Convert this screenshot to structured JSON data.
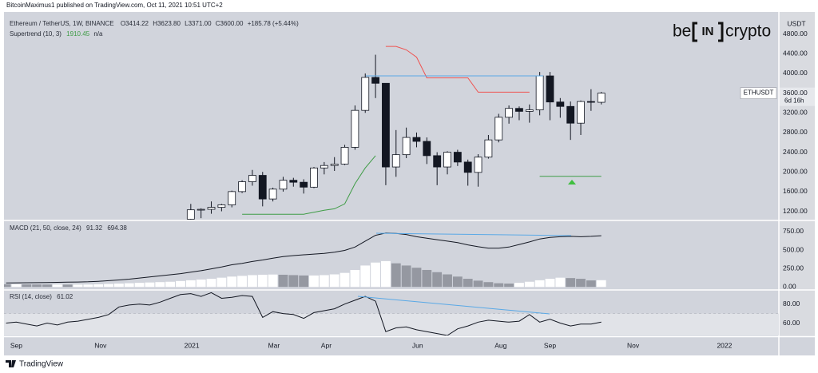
{
  "header": {
    "publisher": "BitcoinMaximus1 published on TradingView.com, Oct 11, 2021 10:51 UTC+2"
  },
  "logo": {
    "left": "be",
    "middle": "IN",
    "right": "crypto"
  },
  "footer": {
    "brand": "TradingView"
  },
  "chart_data": [
    {
      "type": "candlestick",
      "title": "Ethereum / TetherUS, 1W, BINANCE",
      "ohlc_legend": [
        {
          "key": "O",
          "value": "3414.22"
        },
        {
          "key": "H",
          "value": "3623.80"
        },
        {
          "key": "L",
          "value": "3371.00"
        },
        {
          "key": "C",
          "value": "3600.00"
        }
      ],
      "change": "+185.78 (+5.44%)",
      "symbol": "ETHUSDT",
      "last_price": "3600.00",
      "countdown": "6d 16h",
      "unit": "USDT",
      "x": [
        17,
        18,
        19,
        20,
        21,
        22,
        23,
        24,
        25,
        26,
        27,
        28,
        29,
        30,
        31,
        32,
        33,
        34,
        35,
        36,
        37,
        38,
        39,
        40,
        41,
        42,
        43,
        44,
        45,
        46,
        47,
        48,
        49,
        50,
        51,
        52,
        53,
        54,
        55,
        56,
        57
      ],
      "open": [
        1040,
        1230,
        1240,
        1280,
        1330,
        1600,
        1800,
        1930,
        1450,
        1650,
        1830,
        1790,
        1690,
        2080,
        2130,
        2160,
        2500,
        3250,
        3920,
        3800,
        2100,
        2350,
        2700,
        2620,
        2330,
        2100,
        2400,
        2200,
        1990,
        2300,
        2650,
        3110,
        3290,
        3230,
        3260,
        3950,
        3420,
        3330,
        2990,
        3430,
        3414.22
      ],
      "high": [
        1350,
        1260,
        1400,
        1350,
        1620,
        1830,
        2040,
        2000,
        1680,
        1900,
        1880,
        1850,
        2100,
        2200,
        2300,
        2550,
        3350,
        4000,
        4380,
        3800,
        2850,
        2900,
        2800,
        2700,
        2400,
        2420,
        2450,
        2250,
        2360,
        2750,
        3180,
        3350,
        3330,
        3370,
        4030,
        4030,
        3500,
        3430,
        3450,
        3680,
        3623.8
      ],
      "low": [
        1000,
        1060,
        1150,
        1200,
        1280,
        1570,
        1720,
        1300,
        1400,
        1600,
        1700,
        1560,
        1670,
        1950,
        2020,
        2140,
        2450,
        3200,
        3500,
        1730,
        1900,
        2280,
        2500,
        2160,
        1730,
        1950,
        2120,
        1720,
        1700,
        2270,
        2600,
        2980,
        3050,
        3000,
        3150,
        3050,
        3100,
        2650,
        2750,
        3240,
        3371
      ],
      "close": [
        1230,
        1240,
        1280,
        1330,
        1600,
        1800,
        1930,
        1450,
        1650,
        1830,
        1790,
        1690,
        2080,
        2130,
        2160,
        2500,
        3250,
        3920,
        3800,
        2100,
        2350,
        2700,
        2620,
        2330,
        2100,
        2400,
        2200,
        1990,
        2300,
        2650,
        3110,
        3290,
        3230,
        3260,
        3950,
        3420,
        3330,
        2990,
        3430,
        3414.22,
        3600
      ],
      "up_color": "#ffffff",
      "down_color": "#131722",
      "supertrend": {
        "title": "Supertrend (10, 3)",
        "value": "1910.45",
        "second": "n/a",
        "up": [
          null,
          null,
          null,
          null,
          null,
          1140,
          1140,
          1140,
          1140,
          1140,
          1140,
          1140,
          1180,
          1220,
          1250,
          1350,
          1760,
          2080,
          2330,
          null,
          null,
          null,
          null,
          null,
          null,
          null,
          null,
          null,
          null,
          null,
          null,
          null,
          null,
          null,
          1910,
          1910,
          1910,
          1910,
          1910,
          1910,
          1910.45
        ],
        "down": [
          null,
          null,
          null,
          null,
          null,
          null,
          null,
          null,
          null,
          null,
          null,
          null,
          null,
          null,
          null,
          null,
          null,
          null,
          null,
          4550,
          4550,
          4480,
          4330,
          3910,
          3910,
          3910,
          3910,
          3910,
          3620,
          3620,
          3620,
          3620,
          3620,
          3620,
          null,
          null,
          null,
          null,
          null,
          null,
          null
        ],
        "up_color": "#3f9c46",
        "down_color": "#ef5350"
      },
      "xlim": [
        -1.2,
        74.3
      ],
      "ylim": [
        1030,
        5200
      ],
      "yticks": [
        {
          "value": 1200,
          "label": "1200.00"
        },
        {
          "value": 1600,
          "label": "1600.00"
        },
        {
          "value": 2000,
          "label": "2000.00"
        },
        {
          "value": 2400,
          "label": "2400.00"
        },
        {
          "value": 2800,
          "label": "2800.00"
        },
        {
          "value": 3200,
          "label": "3200.00"
        },
        {
          "value": 3600,
          "label": "3600.00"
        },
        {
          "value": 4000,
          "label": "4000.00"
        },
        {
          "value": 4400,
          "label": "4400.00"
        },
        {
          "value": 4800,
          "label": "4800.00"
        }
      ]
    },
    {
      "type": "macd",
      "title": "MACD (21, 50, close, 24)",
      "legend_values": [
        "91.32",
        "694.38"
      ],
      "x": [
        -1,
        0,
        1,
        2,
        3,
        4,
        5,
        6,
        7,
        8,
        9,
        10,
        11,
        12,
        13,
        14,
        15,
        16,
        17,
        18,
        19,
        20,
        21,
        22,
        23,
        24,
        25,
        26,
        27,
        28,
        29,
        30,
        31,
        32,
        33,
        34,
        35,
        36,
        37,
        38,
        39,
        40,
        41,
        42,
        43,
        44,
        45,
        46,
        47,
        48,
        49,
        50,
        51,
        52,
        53,
        54,
        55,
        56,
        57
      ],
      "macd": [
        54,
        55,
        57,
        58,
        60,
        62,
        64,
        66,
        70,
        76,
        85,
        95,
        105,
        120,
        135,
        150,
        165,
        180,
        200,
        220,
        245,
        270,
        300,
        320,
        345,
        365,
        390,
        410,
        425,
        435,
        445,
        455,
        470,
        495,
        540,
        620,
        700,
        730,
        725,
        710,
        680,
        660,
        640,
        620,
        600,
        570,
        545,
        525,
        525,
        540,
        575,
        610,
        650,
        670,
        680,
        685,
        680,
        685,
        694.38
      ],
      "histogram": [
        35,
        35,
        34,
        33,
        32,
        32,
        31,
        31,
        32,
        35,
        40,
        45,
        50,
        55,
        60,
        65,
        70,
        80,
        90,
        100,
        110,
        125,
        140,
        150,
        160,
        165,
        168,
        165,
        160,
        155,
        155,
        160,
        170,
        190,
        230,
        290,
        330,
        350,
        320,
        290,
        260,
        230,
        200,
        170,
        140,
        110,
        85,
        65,
        50,
        45,
        55,
        70,
        90,
        110,
        125,
        120,
        110,
        88,
        91.32
      ],
      "line_color": "#131722",
      "rising_color": "#ffffff",
      "falling_color": "#9598a1",
      "xlim": [
        -1.2,
        74.3
      ],
      "ylim": [
        -30,
        890
      ],
      "yticks": [
        {
          "value": 0,
          "label": "0.00"
        },
        {
          "value": 250,
          "label": "250.00"
        },
        {
          "value": 500,
          "label": "500.00"
        },
        {
          "value": 750,
          "label": "750.00"
        }
      ]
    },
    {
      "type": "line",
      "title": "RSI (14, close)",
      "legend_value": "61.02",
      "x": [
        -1,
        0,
        1,
        2,
        3,
        4,
        5,
        6,
        7,
        8,
        9,
        10,
        11,
        12,
        13,
        14,
        15,
        16,
        17,
        18,
        19,
        20,
        21,
        22,
        23,
        24,
        25,
        26,
        27,
        28,
        29,
        30,
        31,
        32,
        33,
        34,
        35,
        36,
        37,
        38,
        39,
        40,
        41,
        42,
        43,
        44,
        45,
        46,
        47,
        48,
        49,
        50,
        51,
        52,
        53,
        54,
        55,
        56,
        57
      ],
      "values": [
        60,
        61,
        59,
        57,
        60,
        58,
        61,
        62,
        64,
        66,
        69,
        77,
        79,
        80,
        79,
        82,
        86,
        90,
        91,
        88,
        92,
        86,
        87,
        89,
        88,
        66,
        72,
        70,
        69,
        65,
        71,
        73,
        75,
        80,
        84,
        88,
        83,
        51,
        55,
        56,
        53,
        51,
        49,
        47,
        54,
        57,
        61,
        63,
        62,
        61,
        62,
        69,
        61,
        64,
        60,
        57,
        59,
        59,
        61.02
      ],
      "color": "#131722",
      "band": [
        30,
        70
      ],
      "band_color": "#e1e3e8",
      "xlim": [
        -1.2,
        74.3
      ],
      "ylim": [
        47,
        94
      ],
      "yticks": [
        {
          "value": 60,
          "label": "60.00"
        },
        {
          "value": 80,
          "label": "80.00"
        }
      ],
      "xticks": [
        {
          "value": 0,
          "label": "Sep"
        },
        {
          "value": 8.2,
          "label": "Nov"
        },
        {
          "value": 17.1,
          "label": "2021"
        },
        {
          "value": 25.1,
          "label": "Mar"
        },
        {
          "value": 30.2,
          "label": "Apr"
        },
        {
          "value": 39.1,
          "label": "Jun"
        },
        {
          "value": 47.2,
          "label": "Aug"
        },
        {
          "value": 52,
          "label": "Sep"
        },
        {
          "value": 60.1,
          "label": "Nov"
        },
        {
          "value": 69,
          "label": "2022"
        }
      ]
    }
  ]
}
